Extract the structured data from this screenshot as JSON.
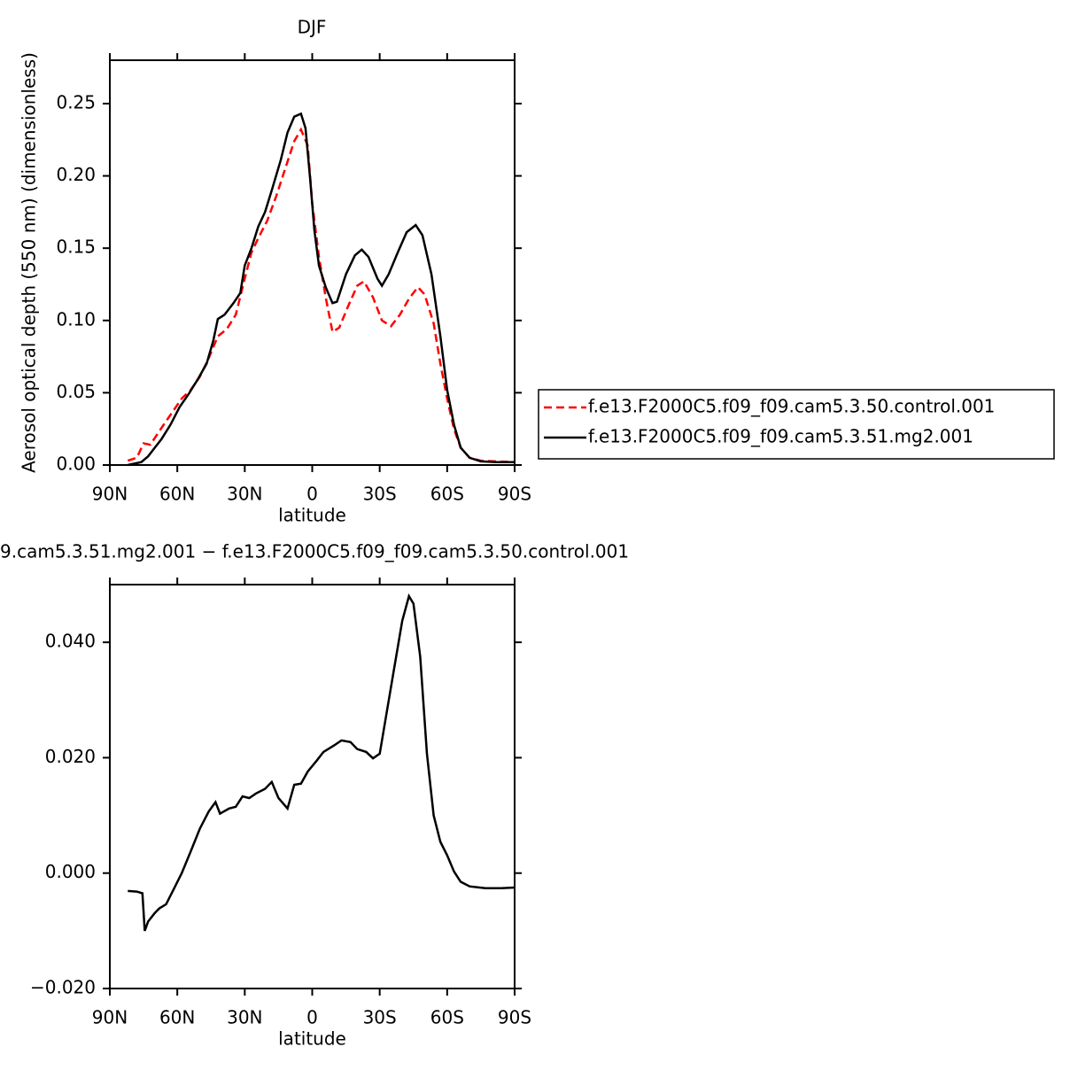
{
  "chart_data": [
    {
      "type": "line",
      "title": "DJF",
      "xlabel": "latitude",
      "ylabel": "Aerosol optical depth (550 nm) (dimensionless)",
      "xlim": [
        90,
        -90
      ],
      "xticks": [
        {
          "value": 90,
          "label": "90N"
        },
        {
          "value": 60,
          "label": "60N"
        },
        {
          "value": 30,
          "label": "30N"
        },
        0,
        {
          "value": -30,
          "label": "30S"
        },
        {
          "value": -60,
          "label": "60S"
        },
        {
          "value": -90,
          "label": "90S"
        }
      ],
      "ylim": [
        0,
        0.28
      ],
      "yticks": [
        {
          "value": 0,
          "label": "0.00"
        },
        {
          "value": 0.05,
          "label": "0.05"
        },
        {
          "value": 0.1,
          "label": "0.10"
        },
        {
          "value": 0.15,
          "label": "0.15"
        },
        {
          "value": 0.2,
          "label": "0.20"
        },
        {
          "value": 0.25,
          "label": "0.25"
        }
      ],
      "legend": "outside-right",
      "series": [
        {
          "name": "f.e13.F2000C5.f09_f09.cam5.3.50.control.001",
          "color": "#ff0000",
          "dash": true,
          "x": [
            82,
            78,
            75,
            72,
            69,
            66,
            62,
            58,
            54,
            50,
            46,
            42,
            38,
            34,
            30,
            27,
            24,
            20,
            16,
            12,
            8,
            5,
            2,
            0,
            -3,
            -6,
            -9,
            -12,
            -16,
            -20,
            -23,
            -27,
            -31,
            -35,
            -39,
            -43,
            -47,
            -50,
            -54,
            -57,
            -60,
            -63,
            -66,
            -70,
            -75,
            -82,
            -90
          ],
          "values": [
            0.003,
            0.005,
            0.015,
            0.014,
            0.021,
            0.028,
            0.037,
            0.046,
            0.052,
            0.061,
            0.074,
            0.089,
            0.094,
            0.104,
            0.129,
            0.147,
            0.157,
            0.169,
            0.186,
            0.205,
            0.224,
            0.232,
            0.221,
            0.181,
            0.144,
            0.116,
            0.092,
            0.095,
            0.11,
            0.124,
            0.127,
            0.116,
            0.1,
            0.096,
            0.104,
            0.115,
            0.123,
            0.118,
            0.098,
            0.07,
            0.046,
            0.025,
            0.012,
            0.005,
            0.003,
            0.0025,
            0.002
          ]
        },
        {
          "name": "f.e13.F2000C5.f09_f09.cam5.3.51.mg2.001",
          "color": "#000000",
          "dash": false,
          "x": [
            82,
            76,
            73,
            70,
            67,
            63,
            59,
            55,
            51,
            47,
            44,
            42,
            39,
            35,
            32,
            30,
            27,
            24,
            21,
            18,
            14,
            11,
            8,
            5,
            3,
            1,
            -1,
            -3,
            -6,
            -9,
            -11,
            -15,
            -19,
            -22,
            -25,
            -29,
            -31,
            -34,
            -38,
            -42,
            -46,
            -49,
            -53,
            -57,
            -60,
            -63,
            -66,
            -70,
            -75,
            -82,
            -90
          ],
          "values": [
            0,
            0.002,
            0.006,
            0.012,
            0.018,
            0.028,
            0.04,
            0.049,
            0.059,
            0.07,
            0.086,
            0.101,
            0.104,
            0.112,
            0.119,
            0.138,
            0.15,
            0.165,
            0.175,
            0.19,
            0.211,
            0.23,
            0.241,
            0.243,
            0.233,
            0.199,
            0.162,
            0.138,
            0.123,
            0.112,
            0.113,
            0.132,
            0.145,
            0.149,
            0.144,
            0.129,
            0.124,
            0.132,
            0.147,
            0.161,
            0.166,
            0.159,
            0.132,
            0.089,
            0.052,
            0.028,
            0.012,
            0.005,
            0.0025,
            0.002,
            0.002
          ]
        }
      ]
    },
    {
      "type": "line",
      "title": "9.cam5.3.51.mg2.001 − f.e13.F2000C5.f09_f09.cam5.3.50.control.001",
      "xlabel": "latitude",
      "xlim": [
        90,
        -90
      ],
      "xticks": [
        {
          "value": 90,
          "label": "90N"
        },
        {
          "value": 60,
          "label": "60N"
        },
        {
          "value": 30,
          "label": "30N"
        },
        0,
        {
          "value": -30,
          "label": "30S"
        },
        {
          "value": -60,
          "label": "60S"
        },
        {
          "value": -90,
          "label": "90S"
        }
      ],
      "ylim": [
        -0.02,
        0.05
      ],
      "yticks": [
        {
          "value": -0.02,
          "label": "−0.020"
        },
        {
          "value": 0,
          "label": "0.000"
        },
        {
          "value": 0.02,
          "label": "0.020"
        },
        {
          "value": 0.04,
          "label": "0.040"
        }
      ],
      "series": [
        {
          "color": "#000000",
          "dash": false,
          "x": [
            82,
            78,
            75.5,
            74.5,
            73,
            70,
            68,
            65,
            62,
            58,
            54,
            50,
            46,
            43,
            41,
            37,
            34,
            31,
            28,
            25,
            21,
            18,
            15,
            11,
            8,
            5,
            2,
            -2,
            -5,
            -10,
            -13,
            -17,
            -20,
            -24,
            -27,
            -30,
            -33,
            -36,
            -40,
            -43,
            -45,
            -48,
            -51,
            -54,
            -57,
            -60,
            -63,
            -66,
            -70,
            -77,
            -84,
            -90
          ],
          "values": [
            -0.0031,
            -0.0032,
            -0.0035,
            -0.01,
            -0.0084,
            -0.0069,
            -0.0061,
            -0.0054,
            -0.0031,
            0,
            0.0038,
            0.0077,
            0.0107,
            0.0123,
            0.0103,
            0.0112,
            0.0115,
            0.0133,
            0.013,
            0.0138,
            0.0146,
            0.0158,
            0.013,
            0.0112,
            0.0153,
            0.0155,
            0.0176,
            0.0195,
            0.021,
            0.0222,
            0.023,
            0.0227,
            0.0215,
            0.021,
            0.0199,
            0.0207,
            0.0276,
            0.0345,
            0.0437,
            0.048,
            0.0467,
            0.0375,
            0.0207,
            0.01,
            0.0054,
            0.0031,
            0.0003,
            -0.0015,
            -0.0023,
            -0.0026,
            -0.0026,
            -0.0025
          ]
        }
      ]
    }
  ]
}
